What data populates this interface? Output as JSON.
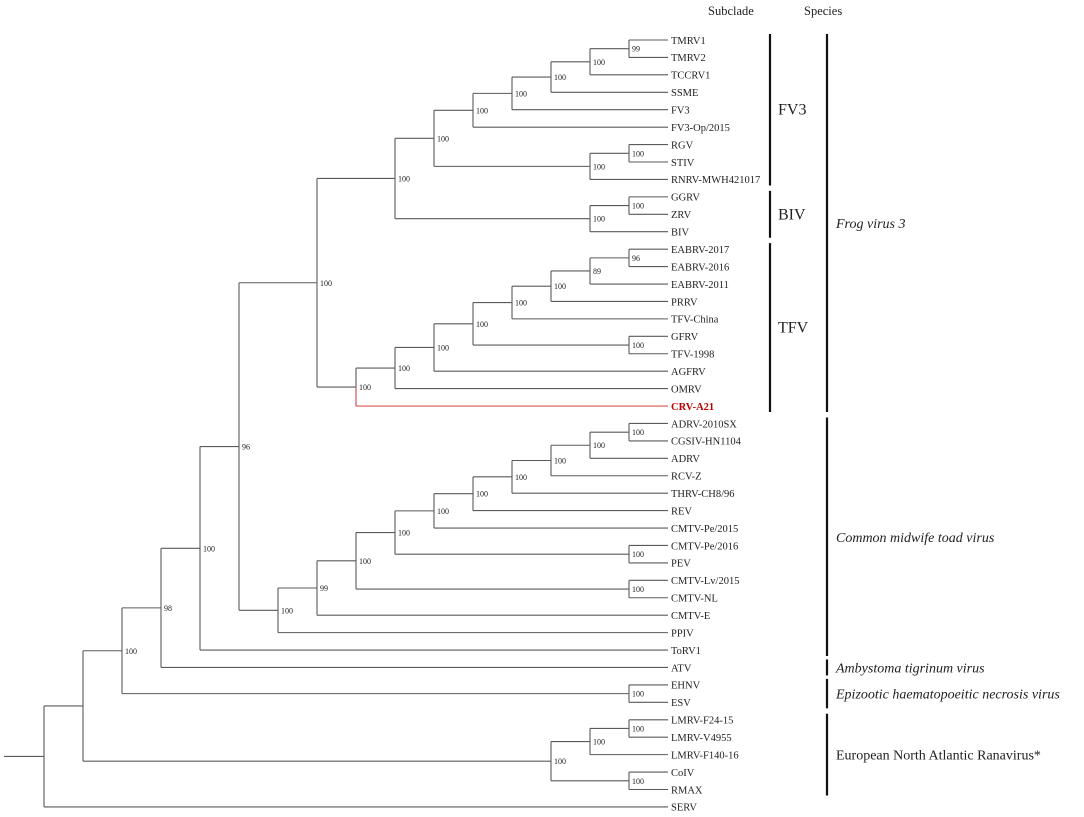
{
  "headers": {
    "subclade": "Subclade",
    "species": "Species"
  },
  "highlight": {
    "leaf": "CRV-A21",
    "text_color": "#c00000",
    "branch_color": "#d9534f"
  },
  "tree": {
    "children": [
      {
        "children": [
          {
            "support": "100",
            "children": [
              {
                "support": "98",
                "children": [
                  {
                    "support": "100",
                    "children": [
                      {
                        "support": "96",
                        "children": [
                          {
                            "support": "100",
                            "children": [
                              {
                                "support": "100",
                                "children": [
                                  {
                                    "support": "100",
                                    "children": [
                                      {
                                        "support": "100",
                                        "children": [
                                          {
                                            "support": "100",
                                            "children": [
                                              {
                                                "support": "100",
                                                "children": [
                                                  {
                                                    "support": "100",
                                                    "children": [
                                                      {
                                                        "support": "99",
                                                        "children": [
                                                          "TMRV1",
                                                          "TMRV2"
                                                        ]
                                                      },
                                                      "TCCRV1"
                                                    ]
                                                  },
                                                  "SSME"
                                                ]
                                              },
                                              "FV3"
                                            ]
                                          },
                                          "FV3-Op/2015"
                                        ]
                                      },
                                      {
                                        "support": "100",
                                        "children": [
                                          {
                                            "support": "100",
                                            "children": [
                                              "RGV",
                                              "STIV"
                                            ]
                                          },
                                          "RNRV-MWH421017"
                                        ]
                                      }
                                    ]
                                  },
                                  {
                                    "support": "100",
                                    "children": [
                                      {
                                        "support": "100",
                                        "children": [
                                          "GGRV",
                                          "ZRV"
                                        ]
                                      },
                                      "BIV"
                                    ]
                                  }
                                ]
                              },
                              {
                                "support": "100",
                                "children": [
                                  {
                                    "support": "100",
                                    "children": [
                                      {
                                        "support": "100",
                                        "children": [
                                          {
                                            "support": "100",
                                            "children": [
                                              {
                                                "support": "100",
                                                "children": [
                                                  {
                                                    "support": "100",
                                                    "children": [
                                                      {
                                                        "support": "89",
                                                        "children": [
                                                          {
                                                            "support": "96",
                                                            "children": [
                                                              "EABRV-2017",
                                                              "EABRV-2016"
                                                            ]
                                                          },
                                                          "EABRV-2011"
                                                        ]
                                                      },
                                                      "PRRV"
                                                    ]
                                                  },
                                                  "TFV-China"
                                                ]
                                              },
                                              {
                                                "support": "100",
                                                "children": [
                                                  "GFRV",
                                                  "TFV-1998"
                                                ]
                                              }
                                            ]
                                          },
                                          "AGFRV"
                                        ]
                                      },
                                      "OMRV"
                                    ]
                                  },
                                  "CRV-A21"
                                ]
                              }
                            ]
                          },
                          {
                            "support": "100",
                            "children": [
                              {
                                "support": "99",
                                "children": [
                                  {
                                    "support": "100",
                                    "children": [
                                      {
                                        "support": "100",
                                        "children": [
                                          {
                                            "support": "100",
                                            "children": [
                                              {
                                                "support": "100",
                                                "children": [
                                                  {
                                                    "support": "100",
                                                    "children": [
                                                      {
                                                        "support": "100",
                                                        "children": [
                                                          {
                                                            "support": "100",
                                                            "children": [
                                                              {
                                                                "support": "100",
                                                                "children": [
                                                                  "ADRV-2010SX",
                                                                  "CGSIV-HN1104"
                                                                ]
                                                              },
                                                              "ADRV"
                                                            ]
                                                          },
                                                          "RCV-Z"
                                                        ]
                                                      },
                                                      "THRV-CH8/96"
                                                    ]
                                                  },
                                                  "REV"
                                                ]
                                              },
                                              "CMTV-Pe/2015"
                                            ]
                                          },
                                          {
                                            "support": "100",
                                            "children": [
                                              "CMTV-Pe/2016",
                                              "PEV"
                                            ]
                                          }
                                        ]
                                      },
                                      {
                                        "support": "100",
                                        "children": [
                                          "CMTV-Lv/2015",
                                          "CMTV-NL"
                                        ]
                                      }
                                    ]
                                  },
                                  "CMTV-E"
                                ]
                              },
                              "PPIV"
                            ]
                          }
                        ]
                      },
                      "ToRV1"
                    ]
                  },
                  "ATV"
                ]
              },
              {
                "support": "100",
                "children": [
                  "EHNV",
                  "ESV"
                ]
              }
            ]
          },
          {
            "support": "100",
            "children": [
              {
                "support": "100",
                "children": [
                  {
                    "support": "100",
                    "children": [
                      "LMRV-F24-15",
                      "LMRV-V4955"
                    ]
                  },
                  "LMRV-F140-16"
                ]
              },
              {
                "support": "100",
                "children": [
                  "CoIV",
                  "RMAX"
                ]
              }
            ]
          }
        ]
      },
      "SERV"
    ]
  },
  "subclades": [
    {
      "label": "FV3",
      "from": "TMRV1",
      "to": "RNRV-MWH421017"
    },
    {
      "label": "BIV",
      "from": "GGRV",
      "to": "BIV"
    },
    {
      "label": "TFV",
      "from": "EABRV-2017",
      "to": "CRV-A21"
    }
  ],
  "species": [
    {
      "label": "Frog virus 3",
      "italic": true,
      "from": "TMRV1",
      "to": "CRV-A21"
    },
    {
      "label": "Common midwife toad virus",
      "italic": true,
      "from": "ADRV-2010SX",
      "to": "ToRV1"
    },
    {
      "label": "Ambystoma tigrinum virus",
      "italic": true,
      "from": "ATV",
      "to": "ATV"
    },
    {
      "label": "Epizootic haematopoeitic necrosis virus",
      "italic": true,
      "from": "EHNV",
      "to": "ESV"
    },
    {
      "label": "European North Atlantic Ranavirus*",
      "italic": false,
      "from": "LMRV-F24-15",
      "to": "RMAX"
    }
  ]
}
